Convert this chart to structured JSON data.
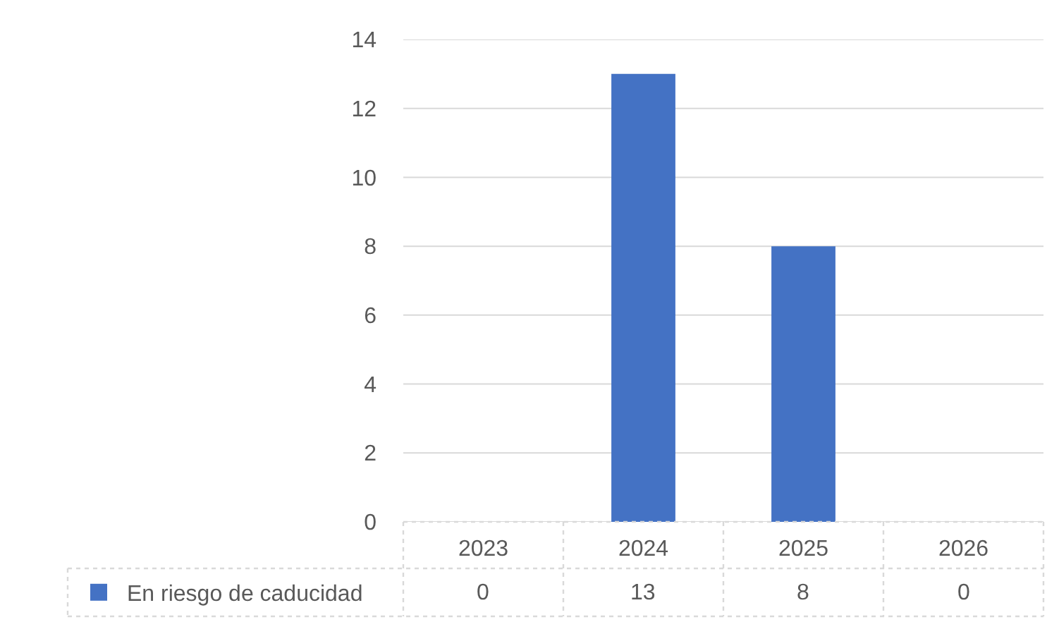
{
  "chart_data": {
    "type": "bar",
    "categories": [
      "2023",
      "2024",
      "2025",
      "2026"
    ],
    "series": [
      {
        "name": "En riesgo de caducidad",
        "color": "#4472c4",
        "values": [
          0,
          13,
          8,
          0
        ]
      }
    ],
    "ylim": [
      0,
      14
    ],
    "yticks": [
      0,
      2,
      4,
      6,
      8,
      10,
      12,
      14
    ],
    "grid": "y",
    "legend": "bottom left",
    "data_labels": true
  }
}
